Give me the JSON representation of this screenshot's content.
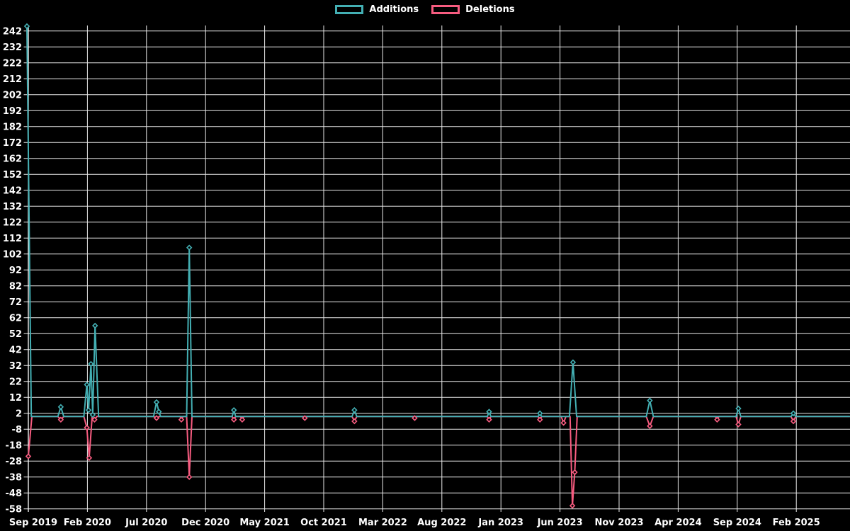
{
  "page": {
    "background_color": "#000000",
    "grid_color": "#e9e9e9",
    "axis_text_color": "#ffffff"
  },
  "legend": {
    "position": "top-center"
  },
  "chart_data": {
    "type": "line",
    "title": "",
    "xlabel": "",
    "ylabel": "",
    "grid": true,
    "legend_position": "top",
    "x_axis": {
      "tick_labels": [
        "Sep 2019",
        "Feb 2020",
        "Jul 2020",
        "Dec 2020",
        "May 2021",
        "Oct 2021",
        "Mar 2022",
        "Aug 2022",
        "Jan 2023",
        "Jun 2023",
        "Nov 2023",
        "Apr 2024",
        "Sep 2024",
        "Feb 2025"
      ],
      "tick_month_offsets": [
        0,
        5,
        10,
        15,
        20,
        25,
        30,
        35,
        40,
        45,
        50,
        55,
        60,
        65
      ],
      "domain_months": [
        0,
        69.5
      ]
    },
    "y_axis": {
      "tick_values": [
        242,
        232,
        222,
        212,
        202,
        192,
        182,
        172,
        162,
        152,
        142,
        132,
        122,
        112,
        102,
        92,
        82,
        72,
        62,
        52,
        42,
        32,
        22,
        12,
        2,
        -8,
        -18,
        -28,
        -38,
        -48,
        -58
      ],
      "domain": [
        -59.9,
        245.4
      ]
    },
    "series": [
      {
        "name": "Additions",
        "color": "#43afb3",
        "points": [
          [
            -0.12,
            245
          ],
          [
            0.25,
            0
          ],
          [
            2.5,
            0
          ],
          [
            2.75,
            6
          ],
          [
            3.0,
            0
          ],
          [
            4.7,
            0
          ],
          [
            4.95,
            20
          ],
          [
            5.1,
            4
          ],
          [
            5.3,
            33
          ],
          [
            5.45,
            1
          ],
          [
            5.65,
            57
          ],
          [
            5.95,
            0
          ],
          [
            10.6,
            0
          ],
          [
            10.85,
            9
          ],
          [
            11.05,
            3
          ],
          [
            11.2,
            0
          ],
          [
            13.4,
            0
          ],
          [
            13.62,
            106
          ],
          [
            13.85,
            0
          ],
          [
            17.25,
            0
          ],
          [
            17.4,
            4
          ],
          [
            17.55,
            0
          ],
          [
            27.4,
            0
          ],
          [
            27.6,
            4
          ],
          [
            27.8,
            0
          ],
          [
            38.85,
            0
          ],
          [
            39.0,
            3
          ],
          [
            39.15,
            0
          ],
          [
            43.15,
            0
          ],
          [
            43.3,
            2
          ],
          [
            43.45,
            0
          ],
          [
            45.8,
            0
          ],
          [
            46.1,
            34
          ],
          [
            46.4,
            0
          ],
          [
            52.3,
            0
          ],
          [
            52.6,
            10
          ],
          [
            52.9,
            0
          ],
          [
            59.9,
            0
          ],
          [
            60.1,
            5
          ],
          [
            60.3,
            0
          ],
          [
            64.55,
            0
          ],
          [
            64.75,
            2
          ],
          [
            64.95,
            0
          ],
          [
            69.5,
            0
          ]
        ]
      },
      {
        "name": "Deletions",
        "color": "#f75c80",
        "points": [
          [
            0.0,
            -25
          ],
          [
            0.3,
            0
          ],
          [
            2.5,
            0
          ],
          [
            2.75,
            -2
          ],
          [
            3.0,
            0
          ],
          [
            4.7,
            0
          ],
          [
            4.95,
            -7
          ],
          [
            5.15,
            -26
          ],
          [
            5.4,
            0
          ],
          [
            5.6,
            -2
          ],
          [
            5.8,
            0
          ],
          [
            10.6,
            0
          ],
          [
            10.85,
            -1
          ],
          [
            11.1,
            0
          ],
          [
            12.85,
            0
          ],
          [
            12.95,
            -2
          ],
          [
            13.1,
            0
          ],
          [
            13.4,
            0
          ],
          [
            13.62,
            -38
          ],
          [
            13.85,
            0
          ],
          [
            17.25,
            0
          ],
          [
            17.4,
            -2
          ],
          [
            17.55,
            0
          ],
          [
            17.95,
            0
          ],
          [
            18.1,
            -2
          ],
          [
            18.25,
            0
          ],
          [
            23.25,
            0
          ],
          [
            23.4,
            -1
          ],
          [
            23.55,
            0
          ],
          [
            27.4,
            0
          ],
          [
            27.6,
            -3
          ],
          [
            27.8,
            0
          ],
          [
            32.55,
            0
          ],
          [
            32.7,
            -1
          ],
          [
            32.85,
            0
          ],
          [
            38.85,
            0
          ],
          [
            39.0,
            -2
          ],
          [
            39.15,
            0
          ],
          [
            43.15,
            0
          ],
          [
            43.3,
            -2
          ],
          [
            43.45,
            0
          ],
          [
            45.1,
            0
          ],
          [
            45.3,
            -4
          ],
          [
            45.5,
            0
          ],
          [
            45.85,
            0
          ],
          [
            46.05,
            -56
          ],
          [
            46.25,
            -35
          ],
          [
            46.45,
            0
          ],
          [
            52.3,
            0
          ],
          [
            52.6,
            -6
          ],
          [
            52.9,
            0
          ],
          [
            58.15,
            0
          ],
          [
            58.3,
            -2
          ],
          [
            58.45,
            0
          ],
          [
            59.9,
            0
          ],
          [
            60.1,
            -5
          ],
          [
            60.3,
            0
          ],
          [
            64.55,
            0
          ],
          [
            64.75,
            -3
          ],
          [
            64.95,
            0
          ],
          [
            69.5,
            0
          ]
        ]
      }
    ]
  }
}
